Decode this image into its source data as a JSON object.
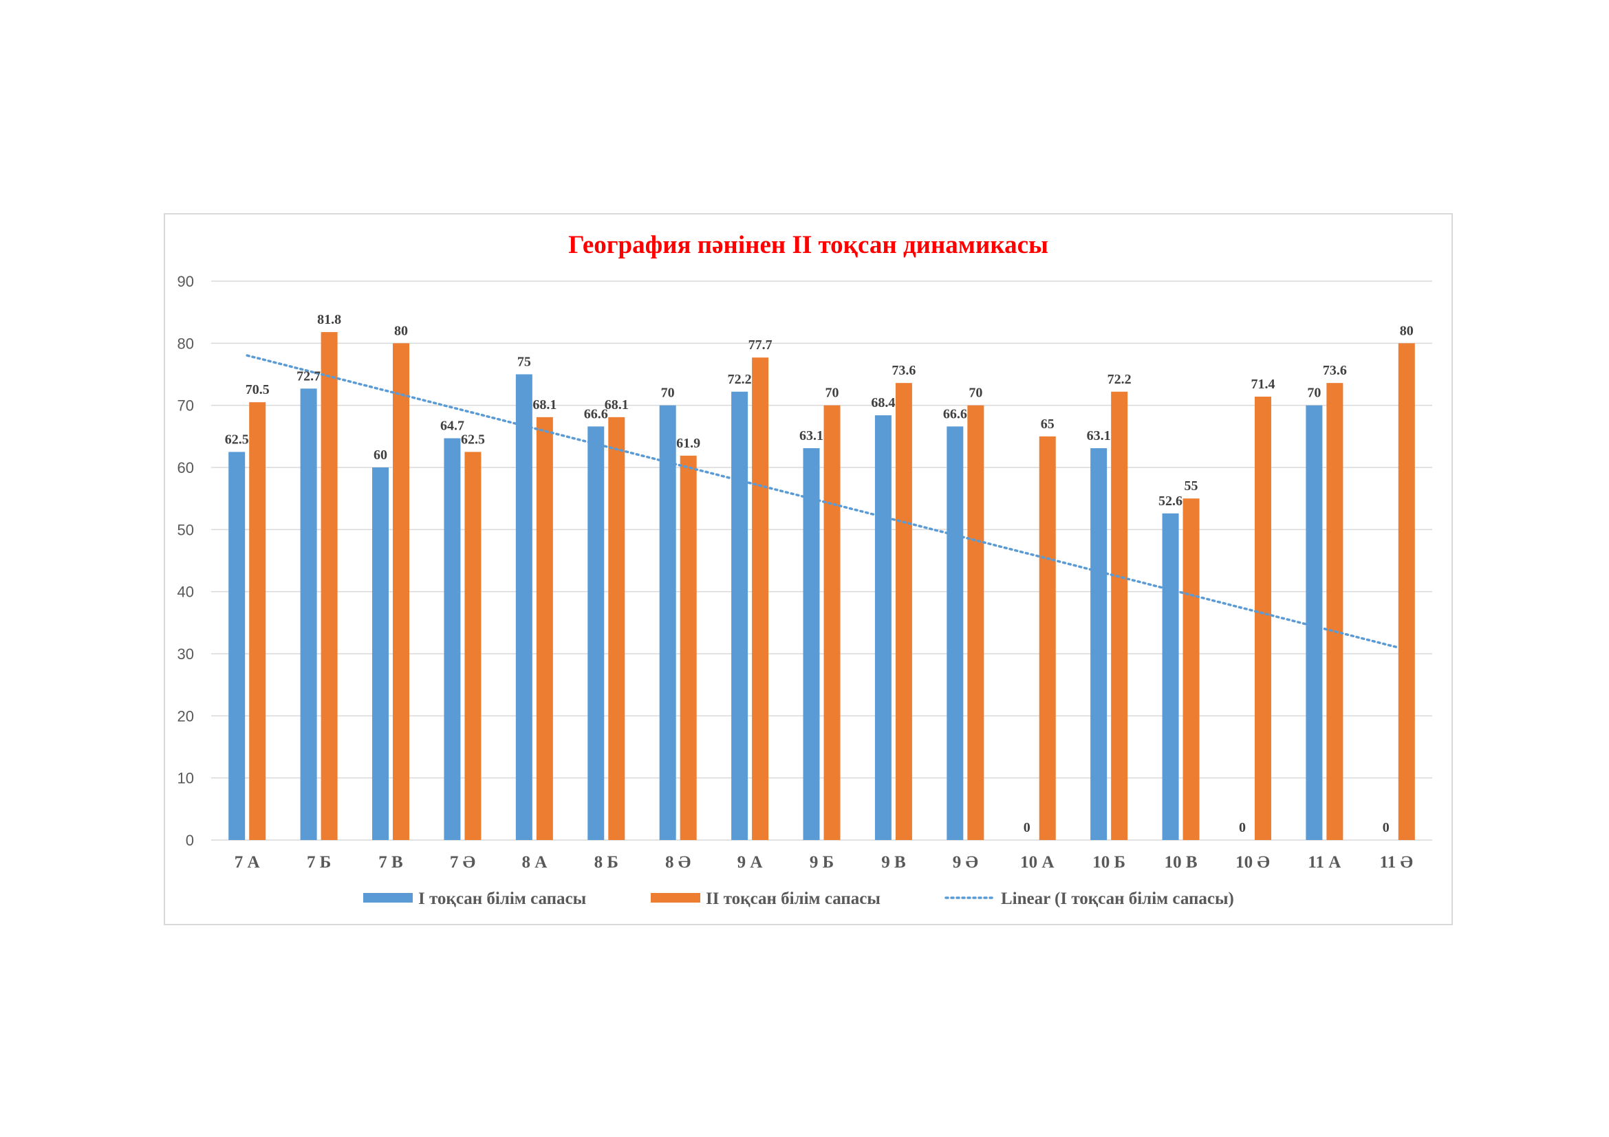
{
  "chart_data": {
    "type": "bar",
    "title": "География пәнінен II тоқсан динамикасы",
    "categories": [
      "7 А",
      "7 Б",
      "7 В",
      "7 Ә",
      "8 А",
      "8 Б",
      "8 Ә",
      "9 А",
      "9 Б",
      "9 В",
      "9 Ә",
      "10 А",
      "10 Б",
      "10 В",
      "10 Ә",
      "11 А",
      "11 Ә"
    ],
    "series": [
      {
        "name": "I тоқсан білім сапасы",
        "color": "#5b9bd5",
        "values": [
          62.5,
          72.7,
          60,
          64.7,
          75,
          66.6,
          70,
          72.2,
          63.1,
          68.4,
          66.6,
          0,
          63.1,
          52.6,
          0,
          70,
          0
        ]
      },
      {
        "name": "II тоқсан білім сапасы",
        "color": "#ed7d31",
        "values": [
          70.5,
          81.8,
          80,
          62.5,
          68.1,
          68.1,
          61.9,
          77.7,
          70,
          73.6,
          70,
          65,
          72.2,
          55,
          71.4,
          73.6,
          80
        ]
      }
    ],
    "trendline": {
      "name": "Linear (I тоқсан білім сапасы)",
      "of_series": 0,
      "type": "linear",
      "color": "#5b9bd5",
      "style": "dotted"
    },
    "ylim": [
      0,
      90
    ],
    "yticks": [
      0,
      10,
      20,
      30,
      40,
      50,
      60,
      70,
      80,
      90
    ],
    "xlabel": "",
    "ylabel": "",
    "grid": true,
    "legend": "bottom"
  }
}
